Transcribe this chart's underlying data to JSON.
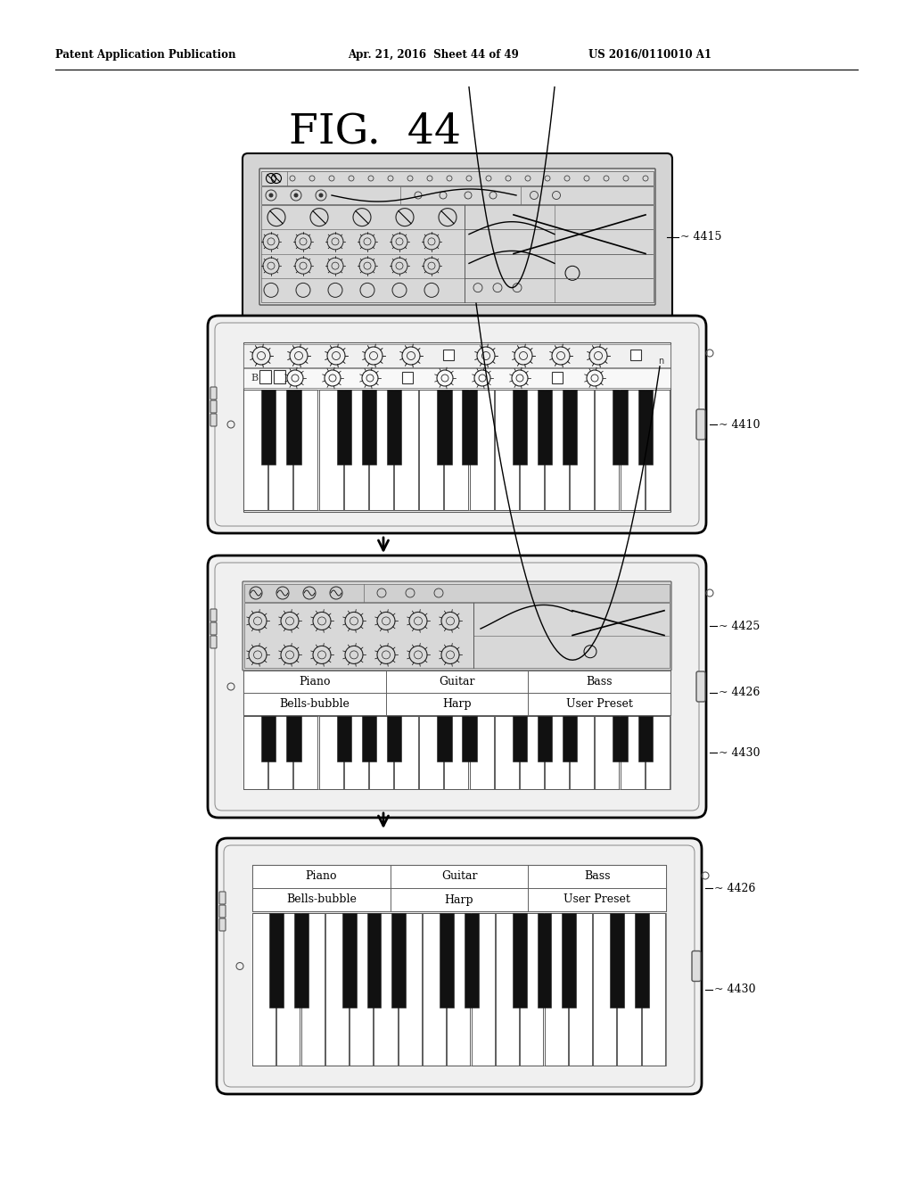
{
  "title": "FIG.  44",
  "header_left": "Patent Application Publication",
  "header_mid": "Apr. 21, 2016  Sheet 44 of 49",
  "header_right": "US 2016/0110010 A1",
  "bg_color": "#ffffff",
  "device_bg": "#cccccc",
  "screen_bg": "#c8c8c8",
  "label_4415": "4415",
  "label_4410": "4410",
  "label_4425": "4425",
  "label_4426": "4426",
  "label_4430": "4430",
  "preset_row1": [
    "Piano",
    "Guitar",
    "Bass"
  ],
  "preset_row2": [
    "Bells-bubble",
    "Harp",
    "User Preset"
  ]
}
